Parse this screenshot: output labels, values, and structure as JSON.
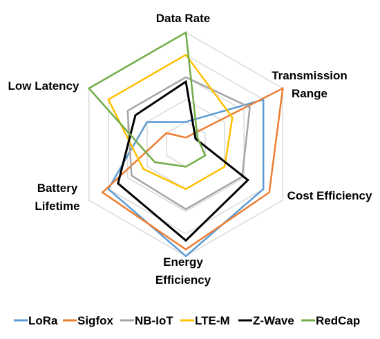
{
  "chart_data": {
    "type": "radar",
    "title": "",
    "axes": [
      "Data Rate",
      "Transmission Range",
      "Cost Efficiency",
      "Energy Efficiency",
      "Battery Lifetime",
      "Low Latency"
    ],
    "axis_label_lines": [
      [
        "Data Rate"
      ],
      [
        "Transmission",
        "Range"
      ],
      [
        "Cost Efficiency"
      ],
      [
        "Energy",
        "Efficiency"
      ],
      [
        "Battery",
        "Lifetime"
      ],
      [
        "Low Latency"
      ]
    ],
    "rmax": 5,
    "rings": [
      1,
      2,
      3,
      4,
      5
    ],
    "grid": true,
    "legend_position": "bottom",
    "series": [
      {
        "name": "LoRa",
        "color": "#5b9bd5",
        "values": [
          1,
          4,
          4,
          5,
          4,
          2
        ]
      },
      {
        "name": "Sigfox",
        "color": "#ed7d31",
        "values": [
          0.3,
          5,
          4.3,
          4.7,
          4.3,
          1
        ]
      },
      {
        "name": "NB-IoT",
        "color": "#a5a5a5",
        "values": [
          3,
          3.3,
          2.9,
          2.9,
          2.8,
          3
        ]
      },
      {
        "name": "LTE-M",
        "color": "#ffc000",
        "values": [
          4,
          2.4,
          2,
          2,
          2.2,
          4
        ]
      },
      {
        "name": "Z-Wave",
        "color": "#000000",
        "values": [
          2.8,
          0.5,
          3.2,
          4.3,
          3.5,
          2.6
        ]
      },
      {
        "name": "RedCap",
        "color": "#70ad47",
        "values": [
          5,
          0.6,
          1,
          1,
          1.6,
          5
        ]
      }
    ]
  }
}
